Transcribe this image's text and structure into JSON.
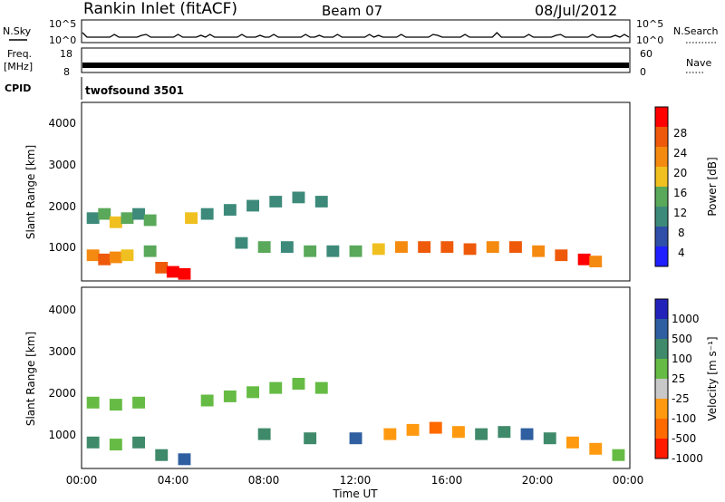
{
  "header": {
    "station": "Rankin Inlet (fitACF)",
    "beam": "Beam 07",
    "date": "08/Jul/2012"
  },
  "strips": {
    "nsky_label": "N.Sky",
    "nsky_ticks": [
      "10^5",
      "10^0"
    ],
    "nsearch_label": "N.Search",
    "nsearch_ticks": [
      "10^5",
      "10^0"
    ],
    "freq_label_1": "Freq.",
    "freq_label_2": "[MHz]",
    "freq_ticks": [
      "18",
      "8"
    ],
    "nave_label": "Nave",
    "nave_ticks": [
      "60",
      "0"
    ],
    "cpid_label": "CPID",
    "cpid_value": "twofsound 3501"
  },
  "axes": {
    "ylabel": "Slant Range [km]",
    "yticks": [
      "4000",
      "3000",
      "2000",
      "1000"
    ],
    "xlabel": "Time UT",
    "xticks": [
      "00:00",
      "04:00",
      "08:00",
      "12:00",
      "16:00",
      "20:00",
      "00:00"
    ]
  },
  "colorbars": {
    "power": {
      "label": "Power [dB]",
      "ticks": [
        "28",
        "24",
        "20",
        "16",
        "12",
        "8",
        "4"
      ],
      "colors": [
        "#1f1fff",
        "#2f4fa8",
        "#3d8a7a",
        "#5aa85a",
        "#f0c020",
        "#f58a10",
        "#ee5a0a",
        "#ff0000"
      ]
    },
    "velocity": {
      "label": "Velocity [m s⁻¹]",
      "ticks": [
        "1000",
        "500",
        "100",
        "25",
        "-25",
        "-100",
        "-500",
        "-1000"
      ],
      "colors": [
        "#2222bb",
        "#2f5fa0",
        "#3f8a6a",
        "#66bb44",
        "#c8c8c8",
        "#ff9a10",
        "#ff6a00",
        "#ff1a00"
      ]
    }
  },
  "chart_data": [
    {
      "type": "heatmap",
      "title": "Power",
      "ylabel": "Slant Range [km]",
      "xlabel": "Time UT",
      "ylim": [
        180,
        4500
      ],
      "xlim_hours": [
        0,
        24
      ],
      "cells": [
        {
          "t": 0.5,
          "r": 1700,
          "v": 8
        },
        {
          "t": 1.0,
          "r": 1800,
          "v": 12
        },
        {
          "t": 1.5,
          "r": 1600,
          "v": 16
        },
        {
          "t": 2.0,
          "r": 1700,
          "v": 12
        },
        {
          "t": 2.5,
          "r": 1800,
          "v": 8
        },
        {
          "t": 3.0,
          "r": 1650,
          "v": 12
        },
        {
          "t": 0.5,
          "r": 800,
          "v": 20
        },
        {
          "t": 1.0,
          "r": 700,
          "v": 24
        },
        {
          "t": 1.5,
          "r": 750,
          "v": 20
        },
        {
          "t": 2.0,
          "r": 800,
          "v": 16
        },
        {
          "t": 3.0,
          "r": 900,
          "v": 12
        },
        {
          "t": 3.5,
          "r": 500,
          "v": 24
        },
        {
          "t": 4.0,
          "r": 400,
          "v": 28
        },
        {
          "t": 4.5,
          "r": 350,
          "v": 28
        },
        {
          "t": 4.8,
          "r": 1700,
          "v": 16
        },
        {
          "t": 5.5,
          "r": 1800,
          "v": 8
        },
        {
          "t": 6.5,
          "r": 1900,
          "v": 8
        },
        {
          "t": 7.5,
          "r": 2000,
          "v": 8
        },
        {
          "t": 8.5,
          "r": 2100,
          "v": 8
        },
        {
          "t": 9.5,
          "r": 2200,
          "v": 8
        },
        {
          "t": 10.5,
          "r": 2100,
          "v": 8
        },
        {
          "t": 7.0,
          "r": 1100,
          "v": 8
        },
        {
          "t": 8.0,
          "r": 1000,
          "v": 12
        },
        {
          "t": 9.0,
          "r": 1000,
          "v": 8
        },
        {
          "t": 10.0,
          "r": 900,
          "v": 12
        },
        {
          "t": 11.0,
          "r": 900,
          "v": 8
        },
        {
          "t": 12.0,
          "r": 900,
          "v": 12
        },
        {
          "t": 13.0,
          "r": 950,
          "v": 16
        },
        {
          "t": 14.0,
          "r": 1000,
          "v": 20
        },
        {
          "t": 15.0,
          "r": 1000,
          "v": 24
        },
        {
          "t": 16.0,
          "r": 1000,
          "v": 24
        },
        {
          "t": 17.0,
          "r": 950,
          "v": 24
        },
        {
          "t": 18.0,
          "r": 1000,
          "v": 20
        },
        {
          "t": 19.0,
          "r": 1000,
          "v": 24
        },
        {
          "t": 20.0,
          "r": 900,
          "v": 20
        },
        {
          "t": 21.0,
          "r": 800,
          "v": 24
        },
        {
          "t": 22.0,
          "r": 700,
          "v": 28
        },
        {
          "t": 22.5,
          "r": 650,
          "v": 20
        }
      ]
    },
    {
      "type": "heatmap",
      "title": "Velocity",
      "ylabel": "Slant Range [km]",
      "xlabel": "Time UT",
      "ylim": [
        180,
        4500
      ],
      "xlim_hours": [
        0,
        24
      ],
      "cells": [
        {
          "t": 0.5,
          "r": 1750,
          "v": 0
        },
        {
          "t": 1.5,
          "r": 1700,
          "v": 0
        },
        {
          "t": 2.5,
          "r": 1750,
          "v": 0
        },
        {
          "t": 0.5,
          "r": 800,
          "v": 100
        },
        {
          "t": 1.5,
          "r": 750,
          "v": 25
        },
        {
          "t": 2.5,
          "r": 800,
          "v": 100
        },
        {
          "t": 3.5,
          "r": 500,
          "v": 100
        },
        {
          "t": 4.5,
          "r": 400,
          "v": 500
        },
        {
          "t": 5.5,
          "r": 1800,
          "v": 0
        },
        {
          "t": 6.5,
          "r": 1900,
          "v": 0
        },
        {
          "t": 7.5,
          "r": 2000,
          "v": 0
        },
        {
          "t": 8.5,
          "r": 2100,
          "v": 0
        },
        {
          "t": 9.5,
          "r": 2200,
          "v": 0
        },
        {
          "t": 10.5,
          "r": 2100,
          "v": 0
        },
        {
          "t": 8.0,
          "r": 1000,
          "v": 100
        },
        {
          "t": 10.0,
          "r": 900,
          "v": 100
        },
        {
          "t": 12.0,
          "r": 900,
          "v": 500
        },
        {
          "t": 13.5,
          "r": 1000,
          "v": -100
        },
        {
          "t": 14.5,
          "r": 1100,
          "v": -100
        },
        {
          "t": 15.5,
          "r": 1150,
          "v": -500
        },
        {
          "t": 16.5,
          "r": 1050,
          "v": -100
        },
        {
          "t": 17.5,
          "r": 1000,
          "v": 100
        },
        {
          "t": 18.5,
          "r": 1050,
          "v": 100
        },
        {
          "t": 19.5,
          "r": 1000,
          "v": 500
        },
        {
          "t": 20.5,
          "r": 900,
          "v": 100
        },
        {
          "t": 21.5,
          "r": 800,
          "v": -100
        },
        {
          "t": 22.5,
          "r": 650,
          "v": -100
        },
        {
          "t": 23.5,
          "r": 500,
          "v": 0
        }
      ]
    }
  ]
}
